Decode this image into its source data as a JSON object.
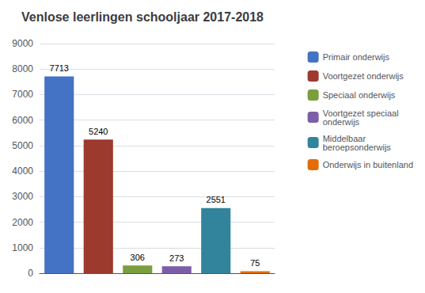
{
  "chart_data": {
    "type": "bar",
    "title": "Venlose leerlingen schooljaar 2017-2018",
    "categories": [
      "Primair onderwijs",
      "Voortgezet onderwijs",
      "Speciaal onderwijs",
      "Voortgezet speciaal\nonderwijs",
      "Middelbaar\nberoepsonderwijs",
      "Onderwijs in buitenland"
    ],
    "values": [
      7713,
      5240,
      306,
      273,
      2551,
      75
    ],
    "colors": [
      "#4472C4",
      "#9C3A2E",
      "#7B9E3E",
      "#7B5EA7",
      "#31849B",
      "#E36C09"
    ],
    "ylim": [
      0,
      9000
    ],
    "yticks": [
      0,
      1000,
      2000,
      3000,
      4000,
      5000,
      6000,
      7000,
      8000,
      9000
    ],
    "grid": true,
    "data_labels": true,
    "tick_labels": "y",
    "legend": "right"
  }
}
